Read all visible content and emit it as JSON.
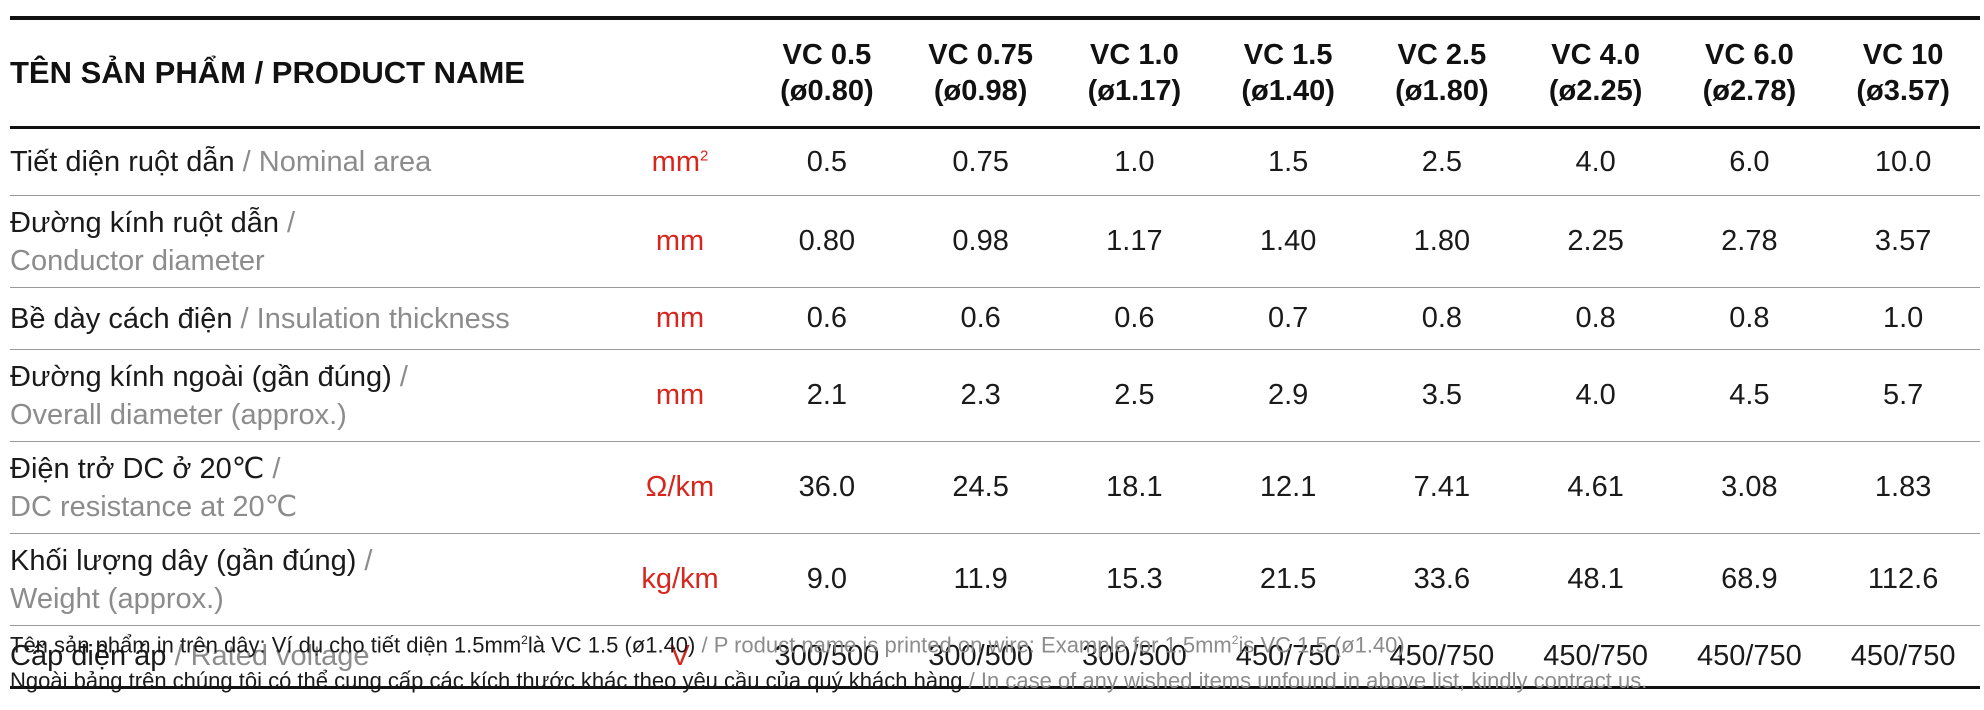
{
  "header": {
    "product_name": "TÊN SẢN PHẨM / PRODUCT NAME",
    "columns": [
      {
        "name": "VC 0.5",
        "dia": "(ø0.80)"
      },
      {
        "name": "VC 0.75",
        "dia": "(ø0.98)"
      },
      {
        "name": "VC 1.0",
        "dia": "(ø1.17)"
      },
      {
        "name": "VC 1.5",
        "dia": "(ø1.40)"
      },
      {
        "name": "VC 2.5",
        "dia": "(ø1.80)"
      },
      {
        "name": "VC 4.0",
        "dia": "(ø2.25)"
      },
      {
        "name": "VC 6.0",
        "dia": "(ø2.78)"
      },
      {
        "name": "VC 10",
        "dia": "(ø3.57)"
      }
    ]
  },
  "rows": [
    {
      "vi": "Tiết diện ruột dẫn",
      "sep": " / ",
      "en": "Nominal area",
      "unit": "mm",
      "unit_sup": "2",
      "values": [
        "0.5",
        "0.75",
        "1.0",
        "1.5",
        "2.5",
        "4.0",
        "6.0",
        "10.0"
      ]
    },
    {
      "vi": "Đường kính ruột dẫn",
      "sep": " /",
      "en": "Conductor diameter",
      "unit": "mm",
      "unit_sup": "",
      "values": [
        "0.80",
        "0.98",
        "1.17",
        "1.40",
        "1.80",
        "2.25",
        "2.78",
        "3.57"
      ]
    },
    {
      "vi": "Bề dày cách điện",
      "sep": " / ",
      "en": "Insulation thickness",
      "unit": "mm",
      "unit_sup": "",
      "values": [
        "0.6",
        "0.6",
        "0.6",
        "0.7",
        "0.8",
        "0.8",
        "0.8",
        "1.0"
      ]
    },
    {
      "vi": "Đường kính ngoài (gần đúng)",
      "sep": " /",
      "en": "Overall diameter (approx.)",
      "unit": "mm",
      "unit_sup": "",
      "values": [
        "2.1",
        "2.3",
        "2.5",
        "2.9",
        "3.5",
        "4.0",
        "4.5",
        "5.7"
      ]
    },
    {
      "vi": "Điện trở DC ở 20℃",
      "sep": " /",
      "en": "DC resistance at 20℃",
      "unit": "Ω/km",
      "unit_sup": "",
      "values": [
        "36.0",
        "24.5",
        "18.1",
        "12.1",
        "7.41",
        "4.61",
        "3.08",
        "1.83"
      ]
    },
    {
      "vi": "Khối lượng dây (gần đúng)",
      "sep": " /",
      "en": "Weight (approx.)",
      "unit": "kg/km",
      "unit_sup": "",
      "values": [
        "9.0",
        "11.9",
        "15.3",
        "21.5",
        "33.6",
        "48.1",
        "68.9",
        "112.6"
      ]
    },
    {
      "vi": "Cấp điện áp",
      "sep": " / ",
      "en": "Rated voltage",
      "unit": "V",
      "unit_sup": "",
      "values": [
        "300/500",
        "300/500",
        "300/500",
        "450/750",
        "450/750",
        "450/750",
        "450/750",
        "450/750"
      ]
    }
  ],
  "notes": {
    "line1_vi_a": "Tên sản phẩm in trên dây: Ví dụ cho tiết diện 1.5mm",
    "line1_sup_a": "2",
    "line1_vi_b": "là VC 1.5 (ø1.40)",
    "line1_en_a": " / P roduct name is printed on wire: Example for 1.5mm",
    "line1_sup_b": "2",
    "line1_en_b": "is   VC 1.5 (ø1.40)",
    "line2_vi": "Ngoài bảng trên chúng tôi có thể cung cấp các kích thước khác theo yêu cầu của quý khách hàng",
    "line2_en": " / In case of any wished items unfound in above list, kindly contract us."
  }
}
